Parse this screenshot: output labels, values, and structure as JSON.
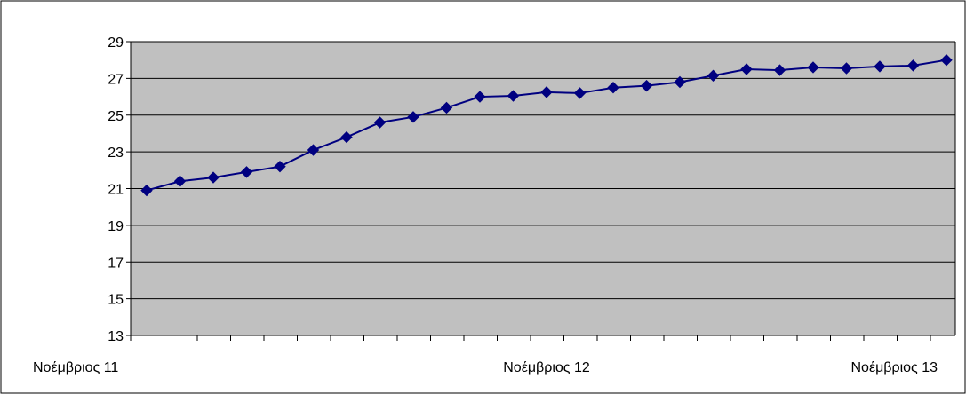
{
  "chart_data": {
    "type": "line",
    "x_labels": [
      "Noέμβριος 11",
      "Noέμβριος 12",
      "Noέμβριος 13"
    ],
    "x_label_index": [
      0,
      12,
      24
    ],
    "y_ticks": [
      "29",
      "27",
      "25",
      "23",
      "21",
      "19",
      "17",
      "15",
      "13"
    ],
    "ylim": [
      13,
      29
    ],
    "y_tick_step": 2,
    "grid": true,
    "series": [
      {
        "values": [
          20.9,
          21.4,
          21.6,
          21.9,
          22.2,
          23.1,
          23.8,
          24.6,
          24.9,
          25.4,
          26.0,
          26.05,
          26.25,
          26.2,
          26.5,
          26.6,
          26.8,
          27.15,
          27.5,
          27.45,
          27.6,
          27.55,
          27.65,
          27.7,
          28.0
        ]
      }
    ],
    "colors": {
      "plot_background": "#c0c0c0",
      "line": "#000080",
      "marker": "#000080",
      "gridline": "#000000",
      "axis": "#000000",
      "frame": "#000000"
    }
  }
}
